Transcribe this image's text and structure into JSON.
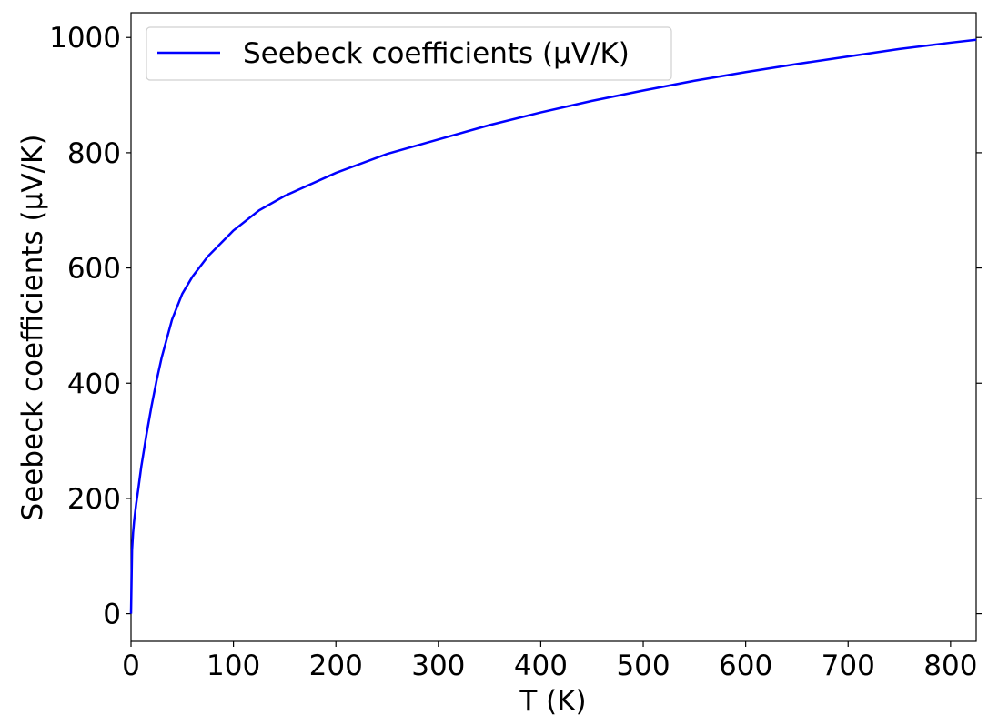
{
  "chart_data": {
    "type": "line",
    "title": "",
    "xlabel": "T (K)",
    "ylabel": "Seebeck coefficients (μV/K)",
    "xlim": [
      0,
      825
    ],
    "ylim": [
      -48,
      1043
    ],
    "xticks": [
      0,
      100,
      200,
      300,
      400,
      500,
      600,
      700,
      800
    ],
    "yticks": [
      0,
      200,
      400,
      600,
      800,
      1000
    ],
    "grid": false,
    "legend_position": "top-left",
    "series": [
      {
        "name": "Seebeck coefficients (μV/K)",
        "color": "#0000ff",
        "x": [
          0,
          1,
          2,
          3,
          5,
          7,
          10,
          15,
          20,
          25,
          30,
          40,
          50,
          60,
          75,
          100,
          125,
          150,
          200,
          250,
          300,
          350,
          400,
          450,
          500,
          550,
          600,
          650,
          700,
          750,
          800,
          825
        ],
        "y": [
          0,
          110,
          140,
          160,
          190,
          215,
          255,
          310,
          360,
          405,
          445,
          510,
          555,
          585,
          620,
          665,
          700,
          725,
          765,
          798,
          823,
          848,
          870,
          890,
          908,
          925,
          940,
          954,
          967,
          980,
          991,
          996
        ]
      }
    ]
  }
}
